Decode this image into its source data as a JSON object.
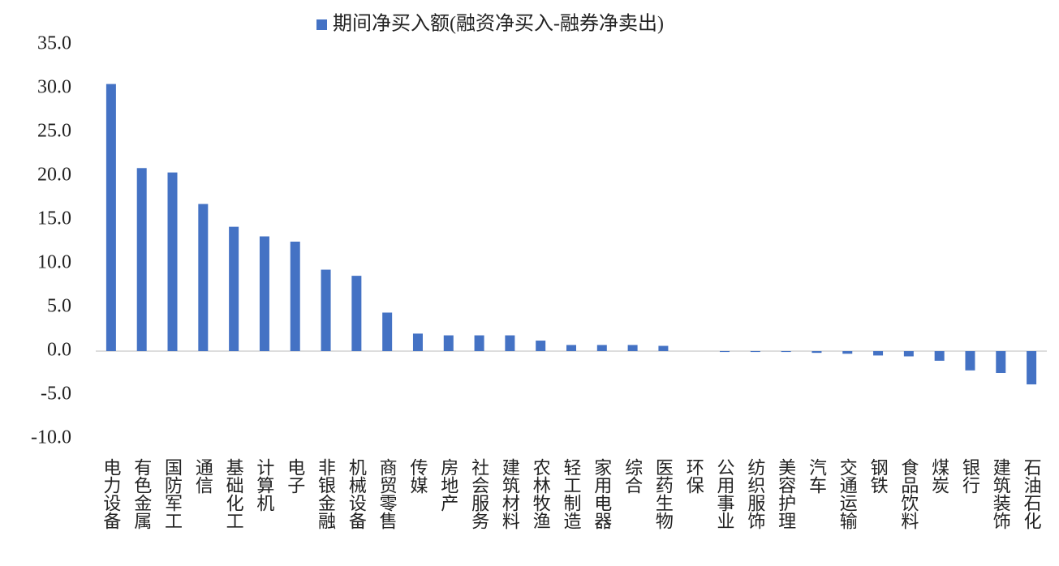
{
  "chart_data": {
    "type": "bar",
    "legend": "期间净买入额(融资净买入-融券净卖出)",
    "categories": [
      "电力设备",
      "有色金属",
      "国防军工",
      "通信",
      "基础化工",
      "计算机",
      "电子",
      "非银金融",
      "机械设备",
      "商贸零售",
      "传媒",
      "房地产",
      "社会服务",
      "建筑材料",
      "农林牧渔",
      "轻工制造",
      "家用电器",
      "综合",
      "医药生物",
      "环保",
      "公用事业",
      "纺织服饰",
      "美容护理",
      "汽车",
      "交通运输",
      "钢铁",
      "食品饮料",
      "煤炭",
      "银行",
      "建筑装饰",
      "石油石化"
    ],
    "values": [
      30.5,
      20.9,
      20.4,
      16.8,
      14.2,
      13.1,
      12.5,
      9.3,
      8.6,
      4.4,
      2.0,
      1.8,
      1.8,
      1.8,
      1.2,
      0.7,
      0.7,
      0.7,
      0.6,
      0.0,
      -0.1,
      -0.1,
      -0.1,
      -0.2,
      -0.3,
      -0.5,
      -0.6,
      -1.1,
      -2.2,
      -2.5,
      -3.8
    ],
    "color": "#4472c4",
    "ylim": [
      -10,
      35
    ],
    "yticks": [
      {
        "value": -10,
        "label": "-10.0"
      },
      {
        "value": -5,
        "label": "-5.0"
      },
      {
        "value": 0,
        "label": "0.0"
      },
      {
        "value": 5,
        "label": "5.0"
      },
      {
        "value": 10,
        "label": "10.0"
      },
      {
        "value": 15,
        "label": "15.0"
      },
      {
        "value": 20,
        "label": "20.0"
      },
      {
        "value": 25,
        "label": "25.0"
      },
      {
        "value": 30,
        "label": "30.0"
      },
      {
        "value": 35,
        "label": "35.0"
      }
    ],
    "grid": false
  }
}
